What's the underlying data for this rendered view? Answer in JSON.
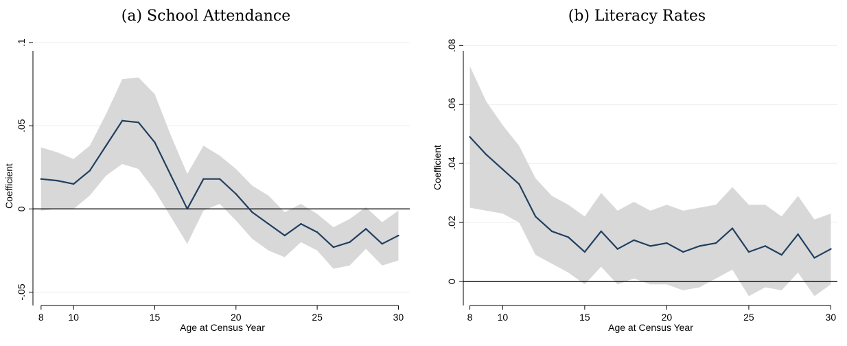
{
  "chart_data": [
    {
      "type": "line",
      "title": "(a) School Attendance",
      "xlabel": "Age at Census Year",
      "ylabel": "Coefficient",
      "xlim": [
        7.5,
        30.7
      ],
      "ylim": [
        -0.056,
        0.1
      ],
      "xticks": [
        8,
        10,
        15,
        20,
        25,
        30
      ],
      "xtick_labels": [
        "8",
        "10",
        "15",
        "20",
        "25",
        "30"
      ],
      "yticks": [
        -0.05,
        0,
        0.05,
        0.1
      ],
      "ytick_labels": [
        "-.05",
        "0",
        ".05",
        ".1"
      ],
      "grid": true,
      "zero_line": true,
      "colors": {
        "line": "#1f3f5f",
        "band": "#d8d8d8"
      },
      "x": [
        8,
        9,
        10,
        11,
        12,
        13,
        14,
        15,
        16,
        17,
        18,
        19,
        20,
        21,
        22,
        23,
        24,
        25,
        26,
        27,
        28,
        29,
        30
      ],
      "series": [
        {
          "values": [
            0.018,
            0.017,
            0.015,
            0.023,
            0.038,
            0.053,
            0.052,
            0.04,
            0.02,
            0.0,
            0.018,
            0.018,
            0.009,
            -0.002,
            -0.009,
            -0.016,
            -0.009,
            -0.014,
            -0.023,
            -0.02,
            -0.012,
            -0.021,
            -0.016
          ]
        }
      ],
      "ci_lower": [
        -0.001,
        0.0,
        0.0,
        0.008,
        0.02,
        0.027,
        0.024,
        0.011,
        -0.005,
        -0.021,
        -0.001,
        0.003,
        -0.007,
        -0.018,
        -0.025,
        -0.029,
        -0.02,
        -0.025,
        -0.036,
        -0.034,
        -0.024,
        -0.034,
        -0.031
      ],
      "ci_upper": [
        0.037,
        0.034,
        0.03,
        0.038,
        0.057,
        0.078,
        0.079,
        0.069,
        0.044,
        0.021,
        0.038,
        0.032,
        0.024,
        0.014,
        0.008,
        -0.002,
        0.003,
        -0.003,
        -0.011,
        -0.006,
        0.001,
        -0.008,
        -0.001
      ]
    },
    {
      "type": "line",
      "title": "(b) Literacy Rates",
      "xlabel": "Age at Census Year",
      "ylabel": "Coefficient",
      "xlim": [
        7.6,
        30.4
      ],
      "ylim": [
        -0.007,
        0.081
      ],
      "xticks": [
        8,
        10,
        15,
        20,
        25,
        30
      ],
      "xtick_labels": [
        "8",
        "10",
        "15",
        "20",
        "25",
        "30"
      ],
      "yticks": [
        0,
        0.02,
        0.04,
        0.06,
        0.08
      ],
      "ytick_labels": [
        "0",
        ".02",
        ".04",
        ".06",
        ".08"
      ],
      "grid": true,
      "zero_line": true,
      "colors": {
        "line": "#1f3f5f",
        "band": "#d8d8d8"
      },
      "x": [
        8,
        9,
        10,
        11,
        12,
        13,
        14,
        15,
        16,
        17,
        18,
        19,
        20,
        21,
        22,
        23,
        24,
        25,
        26,
        27,
        28,
        29,
        30
      ],
      "series": [
        {
          "values": [
            0.049,
            0.043,
            0.038,
            0.033,
            0.022,
            0.017,
            0.015,
            0.01,
            0.017,
            0.011,
            0.014,
            0.012,
            0.013,
            0.01,
            0.012,
            0.013,
            0.018,
            0.01,
            0.012,
            0.009,
            0.016,
            0.008,
            0.011
          ]
        }
      ],
      "ci_lower": [
        0.025,
        0.024,
        0.023,
        0.02,
        0.009,
        0.006,
        0.003,
        -0.001,
        0.005,
        -0.001,
        0.001,
        -0.001,
        -0.001,
        -0.003,
        -0.002,
        0.001,
        0.004,
        -0.005,
        -0.002,
        -0.003,
        0.003,
        -0.005,
        -0.001
      ],
      "ci_upper": [
        0.073,
        0.061,
        0.053,
        0.046,
        0.035,
        0.029,
        0.026,
        0.022,
        0.03,
        0.024,
        0.027,
        0.024,
        0.026,
        0.024,
        0.025,
        0.026,
        0.032,
        0.026,
        0.026,
        0.022,
        0.029,
        0.021,
        0.023
      ]
    }
  ]
}
